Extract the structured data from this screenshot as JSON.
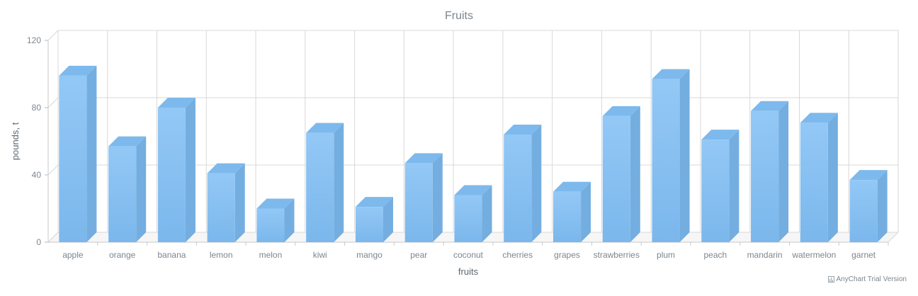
{
  "chart_data": {
    "type": "bar",
    "title": "Fruits",
    "xlabel": "fruits",
    "ylabel": "pounds, t",
    "ylim": [
      0,
      120
    ],
    "yticks": [
      0,
      40,
      80,
      120
    ],
    "grid": true,
    "categories": [
      "apple",
      "orange",
      "banana",
      "lemon",
      "melon",
      "kiwi",
      "mango",
      "pear",
      "coconut",
      "cherries",
      "grapes",
      "strawberries",
      "plum",
      "peach",
      "mandarin",
      "watermelon",
      "garnet"
    ],
    "series": [
      {
        "values": [
          99,
          57,
          80,
          41,
          20,
          65,
          21,
          47,
          28,
          64,
          30,
          75,
          97,
          61,
          78,
          71,
          37
        ]
      }
    ],
    "colors": {
      "bar_front": "#8ec4f4",
      "bar_side": "#74aee0",
      "bar_top": "#7db9ec",
      "grid": "#d8d8d8",
      "text": "#7c868e"
    }
  },
  "credits": {
    "text": "AnyChart Trial Version",
    "icon": "chart-icon"
  }
}
